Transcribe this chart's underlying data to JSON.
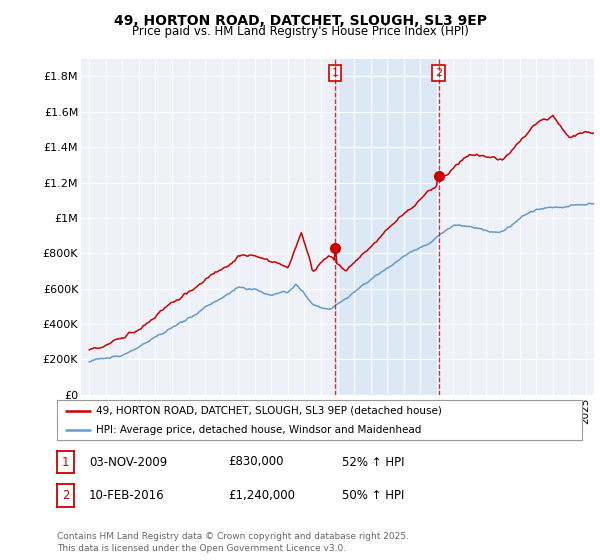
{
  "title": "49, HORTON ROAD, DATCHET, SLOUGH, SL3 9EP",
  "subtitle": "Price paid vs. HM Land Registry's House Price Index (HPI)",
  "background_color": "#ffffff",
  "plot_bg_color": "#eef2f8",
  "grid_color": "#ffffff",
  "red_color": "#cc0000",
  "blue_color": "#6699cc",
  "shade_color": "#dce8f5",
  "ylim": [
    0,
    1900000
  ],
  "yticks": [
    0,
    200000,
    400000,
    600000,
    800000,
    1000000,
    1200000,
    1400000,
    1600000,
    1800000
  ],
  "ytick_labels": [
    "£0",
    "£200K",
    "£400K",
    "£600K",
    "£800K",
    "£1M",
    "£1.2M",
    "£1.4M",
    "£1.6M",
    "£1.8M"
  ],
  "sale1_date": 2009.84,
  "sale1_price": 830000,
  "sale1_label": "1",
  "sale2_date": 2016.11,
  "sale2_price": 1240000,
  "sale2_label": "2",
  "legend_line1": "49, HORTON ROAD, DATCHET, SLOUGH, SL3 9EP (detached house)",
  "legend_line2": "HPI: Average price, detached house, Windsor and Maidenhead",
  "table_row1": [
    "1",
    "03-NOV-2009",
    "£830,000",
    "52% ↑ HPI"
  ],
  "table_row2": [
    "2",
    "10-FEB-2016",
    "£1,240,000",
    "50% ↑ HPI"
  ],
  "footnote": "Contains HM Land Registry data © Crown copyright and database right 2025.\nThis data is licensed under the Open Government Licence v3.0.",
  "xmin": 1994.5,
  "xmax": 2025.5
}
